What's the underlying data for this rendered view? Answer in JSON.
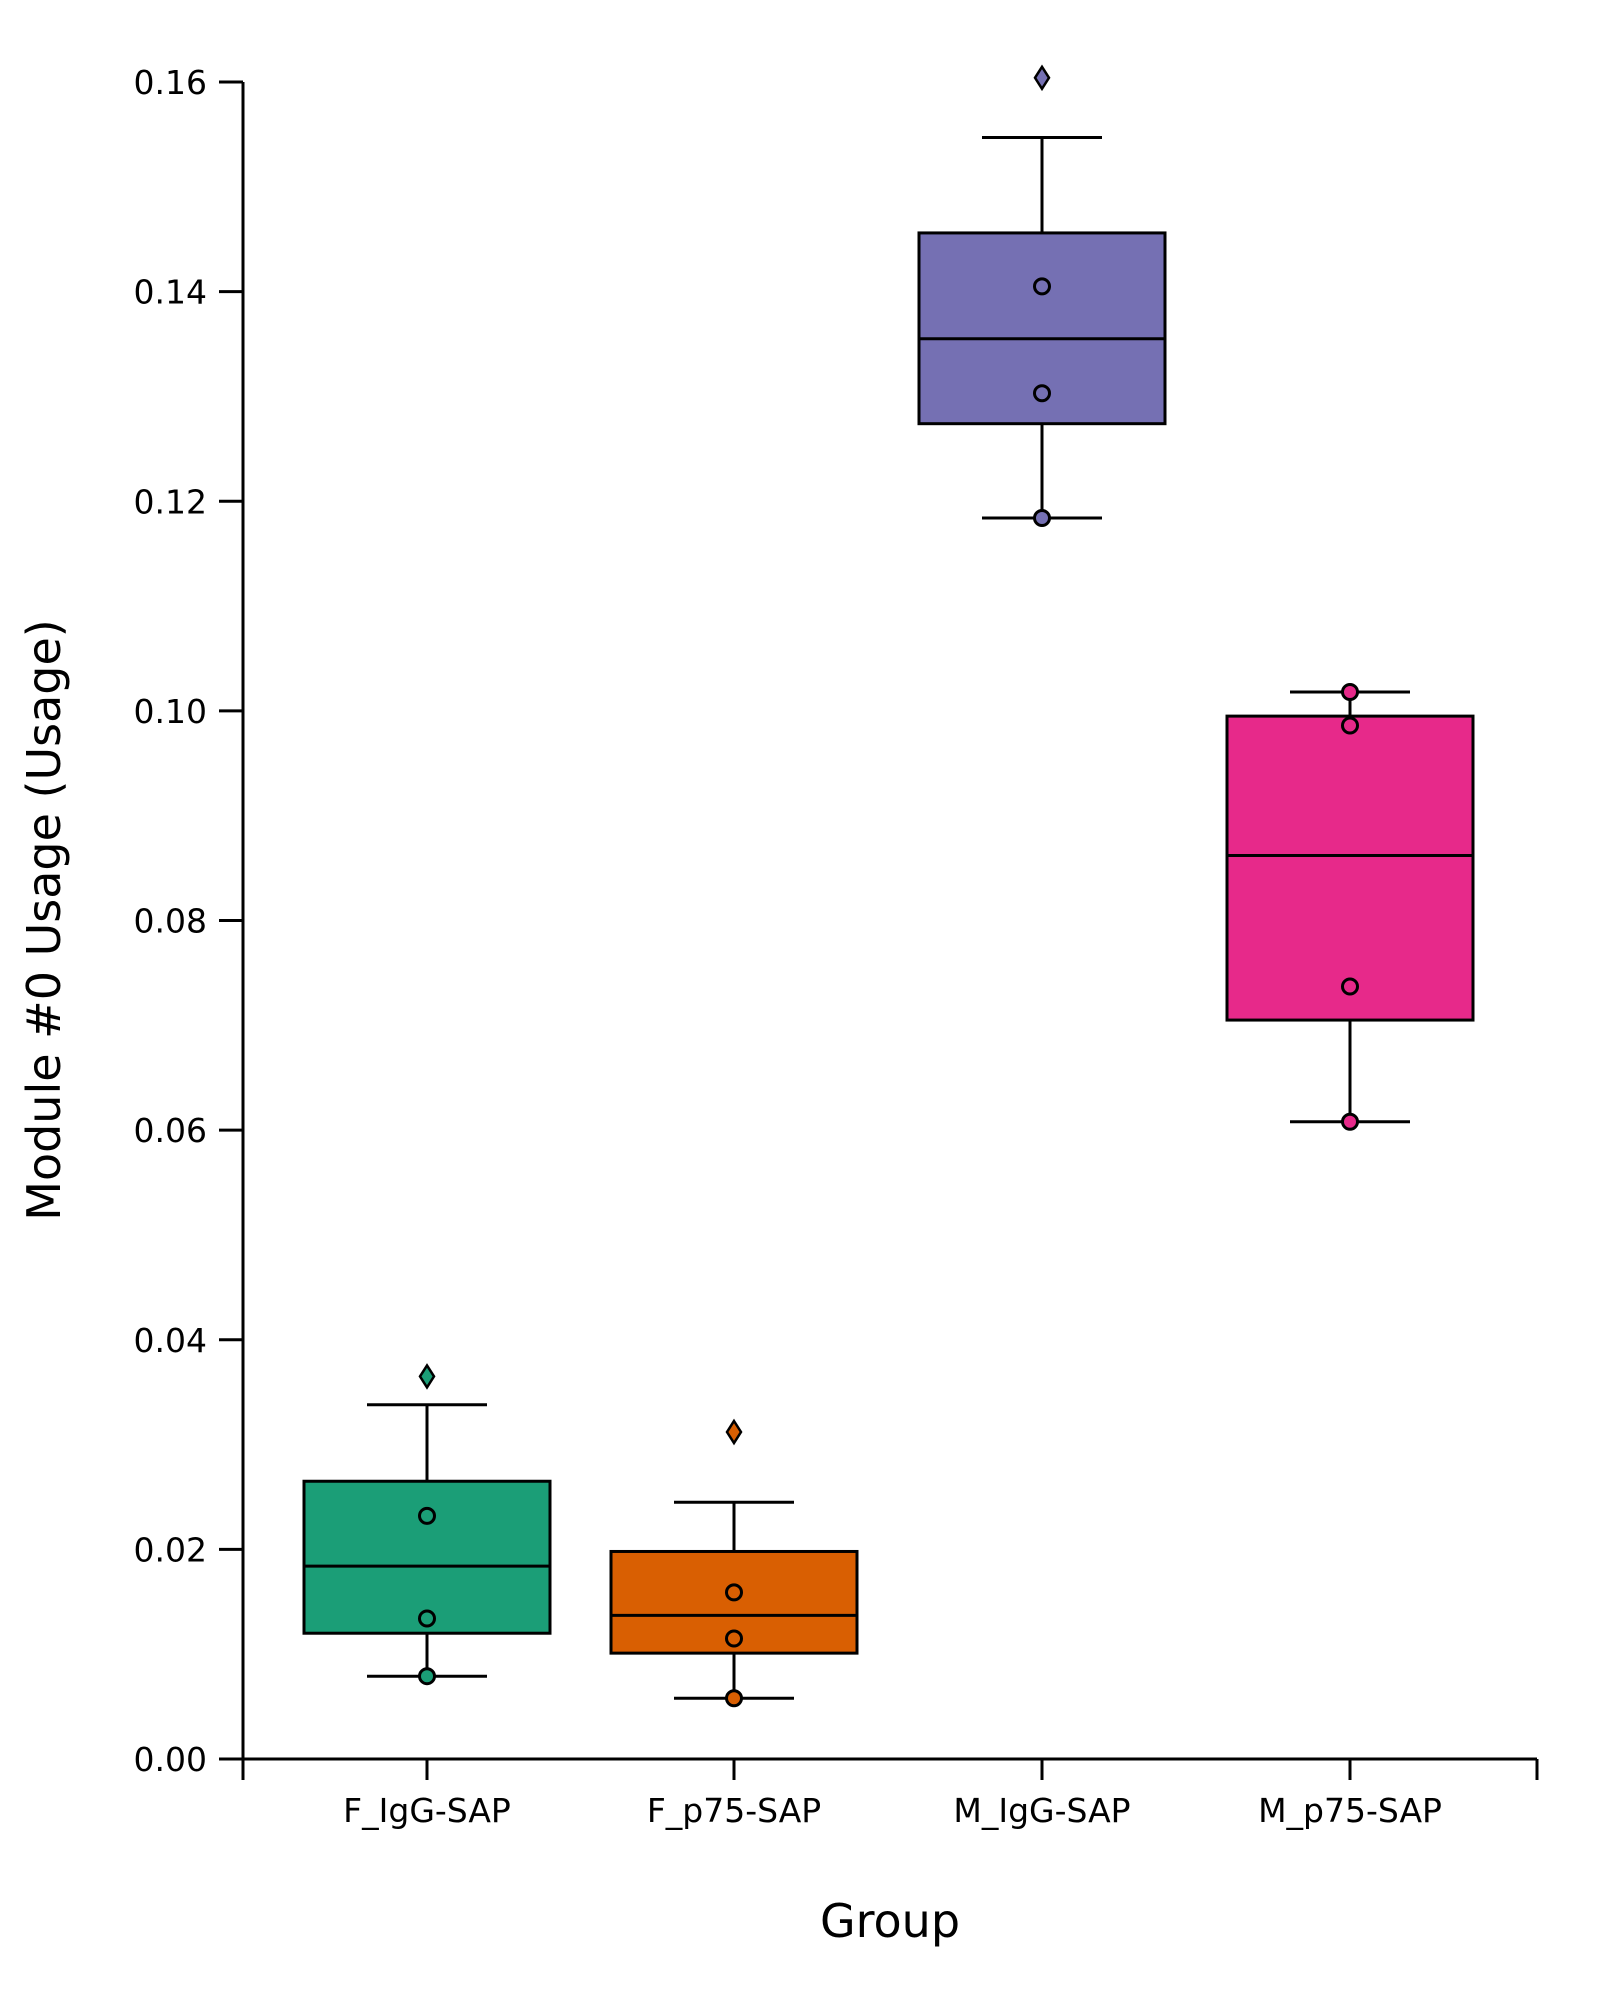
{
  "chart_data": {
    "type": "box",
    "title": "",
    "xlabel": "Group",
    "ylabel": "Module #0 Usage (Usage)",
    "ylim": [
      0.0,
      0.16
    ],
    "yticks": [
      "0.00",
      "0.02",
      "0.04",
      "0.06",
      "0.08",
      "0.10",
      "0.12",
      "0.14",
      "0.16"
    ],
    "grid": false,
    "categories": [
      "F_IgG-SAP",
      "F_p75-SAP",
      "M_IgG-SAP",
      "M_p75-SAP"
    ],
    "colors": [
      "#1b9e77",
      "#d95f02",
      "#7570b3",
      "#e7298a"
    ],
    "boxes": [
      {
        "q1": 0.012,
        "median": 0.0184,
        "q3": 0.0265,
        "whisker_low": 0.0079,
        "whisker_high": 0.0338,
        "outliers": [
          0.0365
        ],
        "points": [
          0.0079,
          0.0134,
          0.0232
        ]
      },
      {
        "q1": 0.0101,
        "median": 0.0137,
        "q3": 0.0198,
        "whisker_low": 0.0058,
        "whisker_high": 0.0245,
        "outliers": [
          0.0312
        ],
        "points": [
          0.0058,
          0.0115,
          0.0159
        ]
      },
      {
        "q1": 0.1274,
        "median": 0.1355,
        "q3": 0.1456,
        "whisker_low": 0.1184,
        "whisker_high": 0.1547,
        "outliers": [
          0.1604
        ],
        "points": [
          0.1184,
          0.1303,
          0.1405
        ]
      },
      {
        "q1": 0.0705,
        "median": 0.0862,
        "q3": 0.0995,
        "whisker_low": 0.0608,
        "whisker_high": 0.1018,
        "outliers": [],
        "points": [
          0.0608,
          0.0737,
          0.0986,
          0.1018
        ]
      }
    ]
  }
}
